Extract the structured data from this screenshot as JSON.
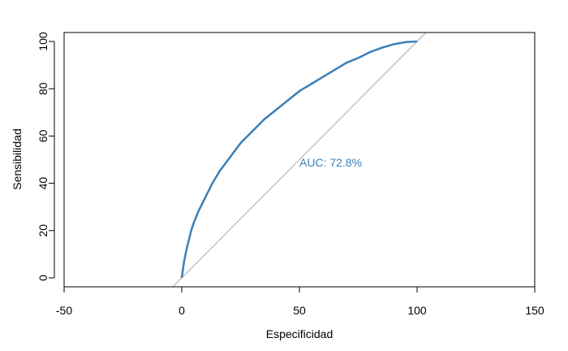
{
  "chart_data": {
    "type": "line",
    "title": "",
    "xlabel": "Especificidad",
    "ylabel": "Sensibilidad",
    "xlim": [
      -50,
      150
    ],
    "ylim": [
      0,
      100
    ],
    "xticks": [
      -50,
      0,
      50,
      100,
      150
    ],
    "yticks": [
      0,
      20,
      40,
      60,
      80,
      100
    ],
    "grid": false,
    "series": [
      {
        "color": "#3a7fb8",
        "x": [
          0,
          1,
          2,
          3,
          4,
          5,
          7,
          10,
          13,
          16,
          19,
          22,
          25,
          30,
          35,
          40,
          45,
          50,
          55,
          60,
          65,
          70,
          75,
          80,
          85,
          90,
          95,
          100
        ],
        "y": [
          0,
          7,
          12,
          16,
          20,
          23,
          28,
          34,
          40,
          45,
          49,
          53,
          57,
          62,
          67,
          71,
          75,
          79,
          82,
          85,
          88,
          91,
          93,
          95.5,
          97.3,
          98.8,
          99.7,
          100
        ]
      }
    ],
    "reference_line": {
      "color": "#aaaaaa",
      "from": [
        -5,
        -5
      ],
      "to": [
        105,
        105
      ]
    },
    "annotations": [
      {
        "text": "AUC: 72.8%",
        "x": 50,
        "y": 47,
        "color": "#3a7fb8"
      }
    ]
  }
}
